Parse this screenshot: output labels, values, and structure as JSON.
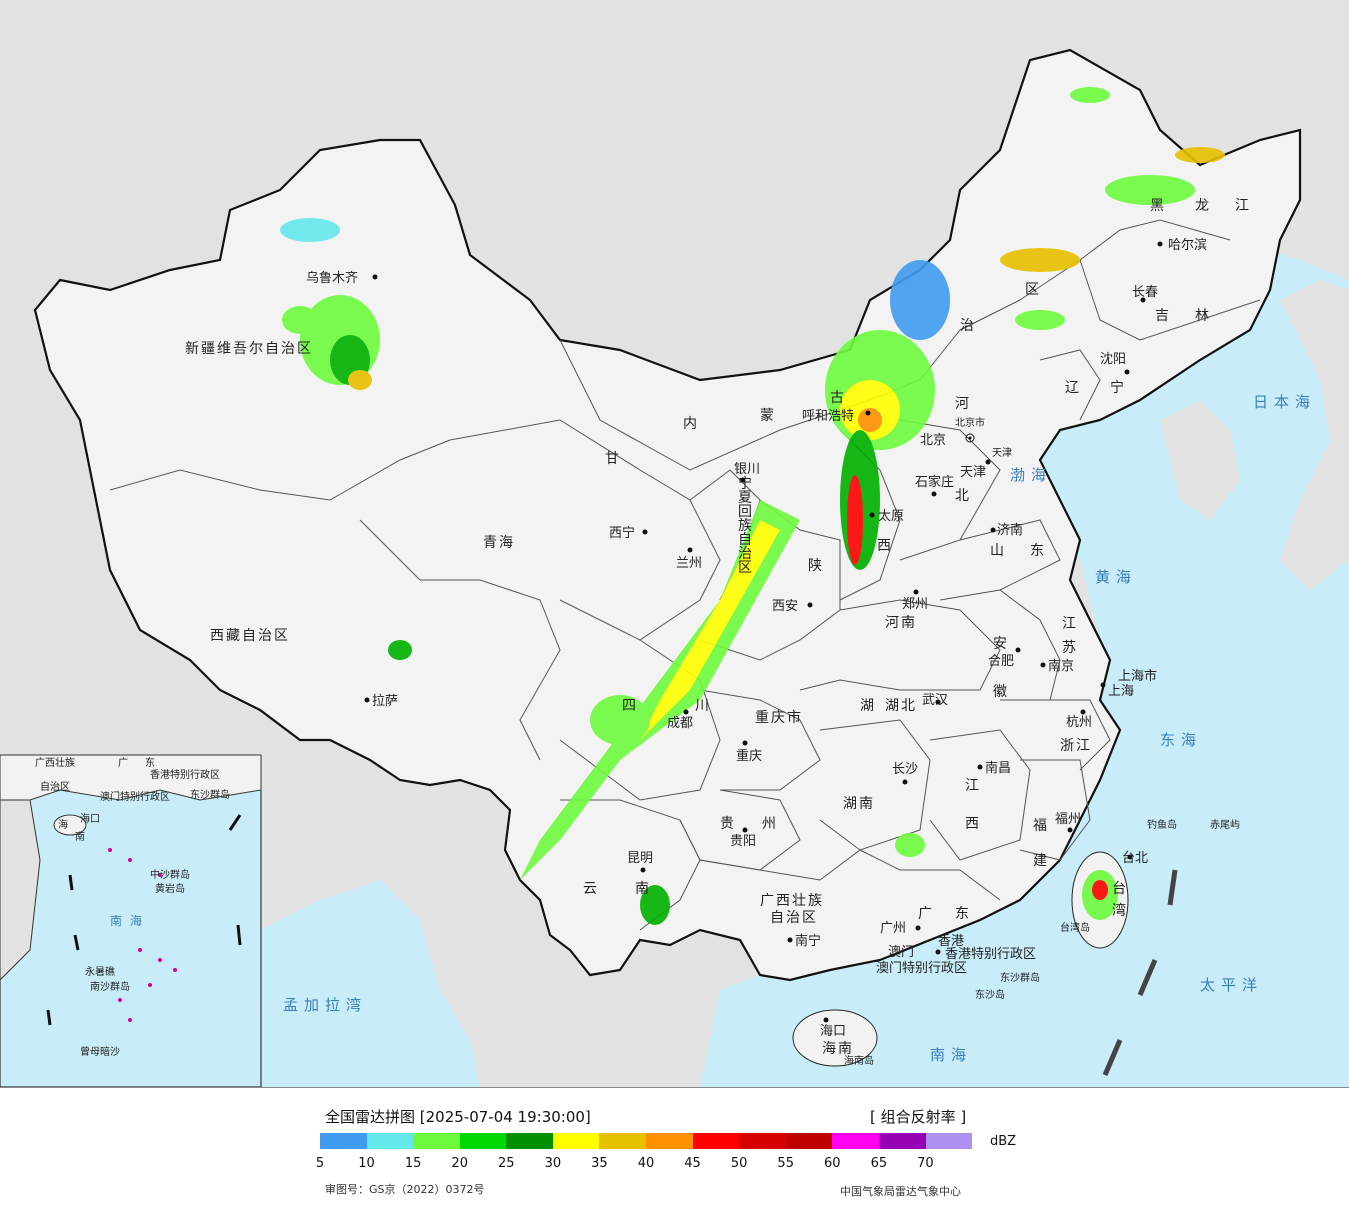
{
  "map": {
    "provinces": [
      "新疆维吾尔自治区",
      "西藏自治区",
      "青海",
      "甘",
      "内",
      "蒙",
      "古",
      "黑",
      "龙",
      "江",
      "吉",
      "林",
      "辽",
      "宁",
      "河",
      "北",
      "山",
      "东",
      "西",
      "陕",
      "河南",
      "湖",
      "湖北",
      "湖南",
      "四",
      "川",
      "重庆市",
      "贵",
      "州",
      "云",
      "南",
      "广西壮族",
      "自治区",
      "广",
      "东",
      "江",
      "西",
      "安",
      "徽",
      "江",
      "苏",
      "浙江",
      "福",
      "建",
      "台",
      "湾",
      "海南",
      "区",
      "治",
      "宁",
      "夏",
      "回",
      "族",
      "自",
      "治",
      "区"
    ],
    "cities": [
      "乌鲁木齐",
      "哈尔滨",
      "长春",
      "沈阳",
      "北京",
      "天津",
      "石家庄",
      "太原",
      "济南",
      "呼和浩特",
      "银川",
      "西宁",
      "兰州",
      "西安",
      "郑州",
      "合肥",
      "南京",
      "上海市",
      "上海",
      "杭州",
      "武汉",
      "成都",
      "重庆",
      "拉萨",
      "长沙",
      "南昌",
      "福州",
      "台北",
      "贵阳",
      "昆明",
      "南宁",
      "广州",
      "澳门",
      "香港",
      "海口",
      "台湾岛",
      "钓鱼岛",
      "赤尾屿",
      "东沙群岛",
      "东沙岛",
      "海南岛"
    ],
    "seas": [
      "日本海",
      "渤海",
      "黄海",
      "东海",
      "太平洋",
      "南海",
      "孟加拉湾"
    ],
    "special": [
      "香港特别行政区",
      "澳门特别行政区",
      "北京市",
      "天津"
    ],
    "inset": {
      "labels": [
        "广西壮族",
        "自治区",
        "广",
        "东",
        "澳门特别行政区",
        "香港特别行政区",
        "东沙群岛",
        "海口",
        "海",
        "南",
        "中沙群岛",
        "黄岩岛",
        "南海",
        "永暑礁",
        "南沙群岛",
        "曾母暗沙"
      ]
    },
    "colors": {
      "sea": "#c8ecf8",
      "land_china": "#f2f2f2",
      "land_other": "#e0e0e0",
      "border": "#111111"
    }
  },
  "legend": {
    "title": "全国雷达拼图 [2025-07-04 19:30:00]",
    "product": "[ 组合反射率 ]",
    "unit": "dBZ",
    "ticks": [
      "5",
      "10",
      "15",
      "20",
      "25",
      "30",
      "35",
      "40",
      "45",
      "50",
      "55",
      "60",
      "65",
      "70"
    ],
    "colors": [
      "#419bf0",
      "#64e7eb",
      "#6dfa3d",
      "#00d800",
      "#019000",
      "#ffff00",
      "#e7c000",
      "#ff9000",
      "#ff0000",
      "#d60000",
      "#c00000",
      "#ff00f0",
      "#9600b4",
      "#ad90f0"
    ],
    "approval": "审图号：GS京（2022）0372号",
    "credit": "中国气象局雷达气象中心"
  }
}
